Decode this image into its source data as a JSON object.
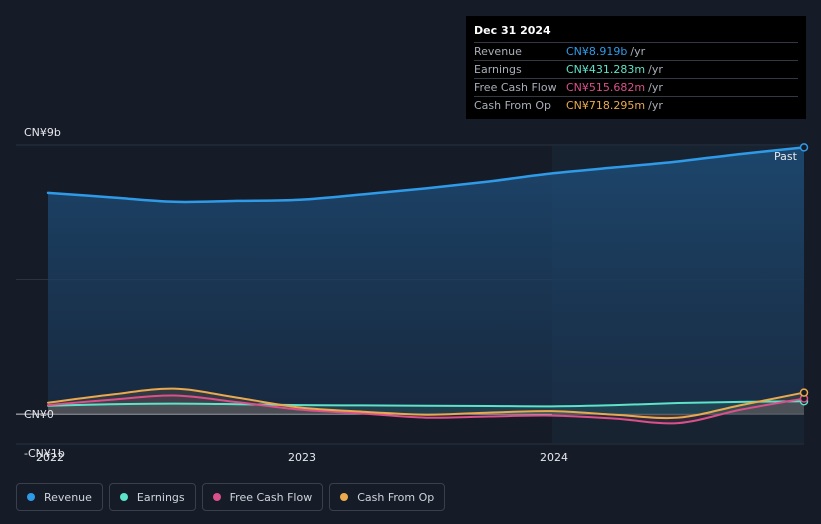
{
  "tooltip": {
    "date": "Dec 31 2024",
    "rows": [
      {
        "label": "Revenue",
        "value": "CN¥8.919b",
        "unit": "/yr",
        "color": "#2f9be8"
      },
      {
        "label": "Earnings",
        "value": "CN¥431.283m",
        "unit": "/yr",
        "color": "#5de3c9"
      },
      {
        "label": "Free Cash Flow",
        "value": "CN¥515.682m",
        "unit": "/yr",
        "color": "#d9508a"
      },
      {
        "label": "Cash From Op",
        "value": "CN¥718.295m",
        "unit": "/yr",
        "color": "#e9a94e"
      }
    ]
  },
  "past_label": "Past",
  "legend": [
    {
      "label": "Revenue",
      "color": "#2f9be8"
    },
    {
      "label": "Earnings",
      "color": "#5de3c9"
    },
    {
      "label": "Free Cash Flow",
      "color": "#d9508a"
    },
    {
      "label": "Cash From Op",
      "color": "#e9a94e"
    }
  ],
  "chart_data": {
    "type": "line",
    "y_tick_labels": [
      "CN¥9b",
      "CN¥0",
      "-CN¥1b"
    ],
    "x_tick_labels": [
      "2022",
      "2023",
      "2024"
    ],
    "ylim": [
      -1,
      9
    ],
    "xlim": [
      2022.0,
      2025.0
    ],
    "grid": true,
    "legend_position": "bottom-left",
    "series": [
      {
        "name": "Revenue",
        "color": "#2f9be8",
        "x": [
          2022.0,
          2022.25,
          2022.5,
          2022.75,
          2023.0,
          2023.25,
          2023.5,
          2023.75,
          2024.0,
          2024.25,
          2024.5,
          2024.75,
          2025.0
        ],
        "y": [
          7.4,
          7.25,
          7.1,
          7.13,
          7.17,
          7.35,
          7.55,
          7.78,
          8.05,
          8.25,
          8.45,
          8.7,
          8.92
        ]
      },
      {
        "name": "Earnings",
        "color": "#5de3c9",
        "x": [
          2022.0,
          2022.25,
          2022.5,
          2022.75,
          2023.0,
          2023.25,
          2023.5,
          2023.75,
          2024.0,
          2024.25,
          2024.5,
          2024.75,
          2025.0
        ],
        "y": [
          0.28,
          0.33,
          0.35,
          0.33,
          0.3,
          0.29,
          0.28,
          0.27,
          0.26,
          0.3,
          0.37,
          0.41,
          0.43
        ]
      },
      {
        "name": "Free Cash Flow",
        "color": "#d9508a",
        "x": [
          2022.0,
          2022.25,
          2022.5,
          2022.75,
          2023.0,
          2023.25,
          2023.5,
          2023.75,
          2024.0,
          2024.25,
          2024.5,
          2024.75,
          2025.0
        ],
        "y": [
          0.3,
          0.48,
          0.62,
          0.4,
          0.15,
          0.02,
          -0.12,
          -0.08,
          -0.05,
          -0.15,
          -0.3,
          0.15,
          0.52
        ]
      },
      {
        "name": "Cash From Op",
        "color": "#e9a94e",
        "x": [
          2022.0,
          2022.25,
          2022.5,
          2022.75,
          2023.0,
          2023.25,
          2023.5,
          2023.75,
          2024.0,
          2024.25,
          2024.5,
          2024.75,
          2025.0
        ],
        "y": [
          0.38,
          0.65,
          0.85,
          0.55,
          0.22,
          0.08,
          -0.02,
          0.05,
          0.1,
          -0.02,
          -0.12,
          0.3,
          0.72
        ]
      }
    ]
  }
}
